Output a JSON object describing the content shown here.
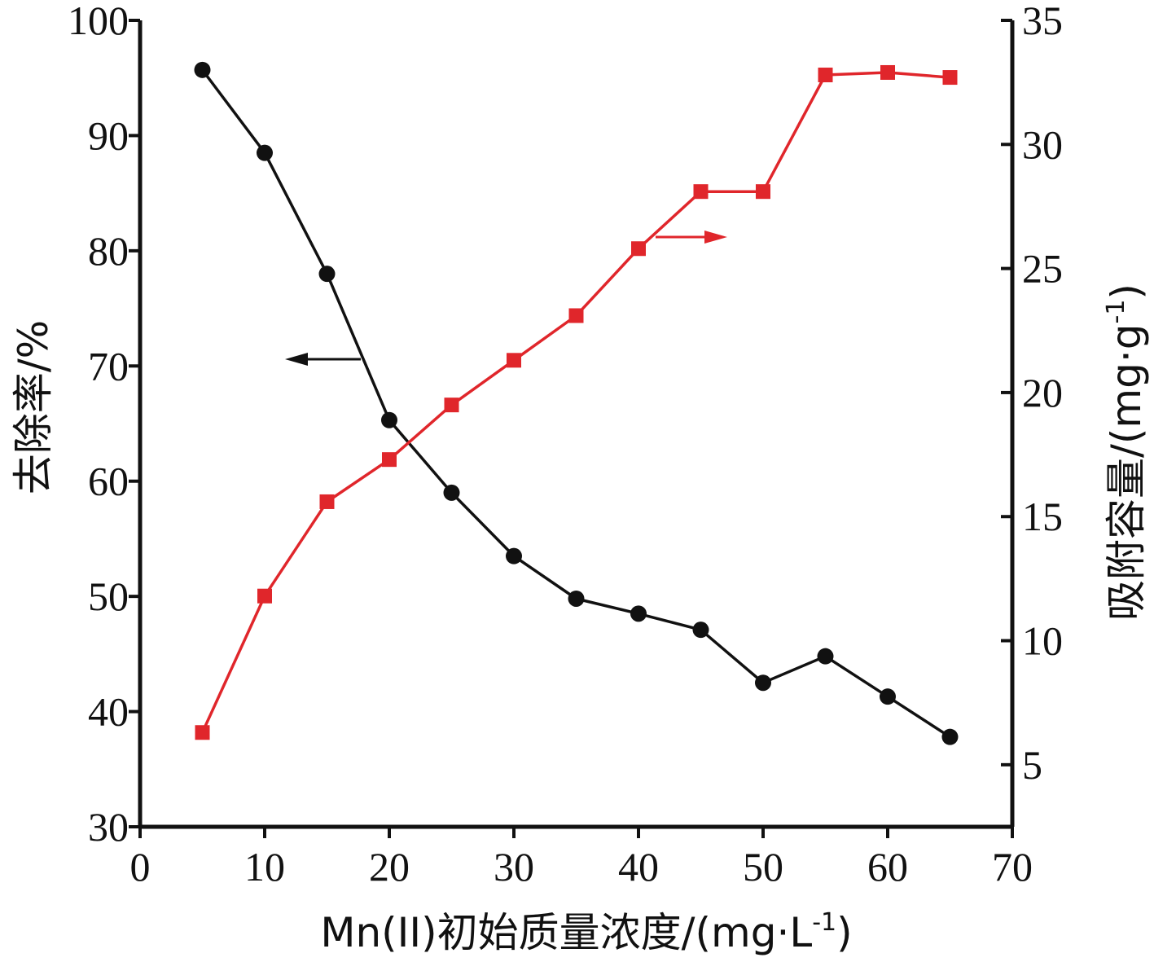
{
  "chart_data": {
    "type": "line",
    "title": "",
    "xlabel": "Mn(II)初始质量浓度/(mg·L",
    "xlabel_sup": "-1",
    "xlabel_tail": ")",
    "ylabel_left": "去除率/%",
    "ylabel_right": "吸附容量/(mg·g",
    "ylabel_right_sup": "-1",
    "ylabel_right_tail": ")",
    "xlim": [
      0,
      70
    ],
    "ylim_left": [
      30,
      100
    ],
    "ylim_right": [
      2.5,
      35
    ],
    "x_ticks": [
      "0",
      "10",
      "20",
      "30",
      "40",
      "50",
      "60",
      "70"
    ],
    "y_left_ticks": [
      "30",
      "40",
      "50",
      "60",
      "70",
      "80",
      "90",
      "100"
    ],
    "y_right_ticks": [
      "5",
      "10",
      "15",
      "20",
      "25",
      "30",
      "35"
    ],
    "grid": false,
    "legend": "none",
    "x": [
      5,
      10,
      15,
      20,
      25,
      30,
      35,
      40,
      45,
      50,
      55,
      60,
      65
    ],
    "series": [
      {
        "axis": "left",
        "marker": "circle",
        "color": "#111111",
        "values": [
          95.7,
          88.5,
          78.0,
          65.3,
          59.0,
          53.5,
          49.8,
          48.5,
          47.1,
          42.5,
          44.8,
          41.3,
          37.8
        ]
      },
      {
        "axis": "right",
        "marker": "square",
        "color": "#e0262b",
        "values": [
          6.3,
          11.8,
          15.6,
          17.3,
          19.5,
          21.3,
          23.1,
          25.8,
          28.1,
          28.1,
          32.8,
          32.9,
          32.7
        ]
      }
    ],
    "annotations": [
      {
        "type": "arrow",
        "direction": "left",
        "points_to": "left-axis",
        "series": 0
      },
      {
        "type": "arrow",
        "direction": "right",
        "points_to": "right-axis",
        "series": 1
      }
    ]
  }
}
